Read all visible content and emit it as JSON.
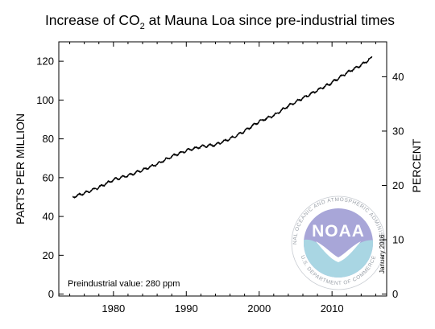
{
  "chart_data": {
    "type": "line",
    "title": "Increase of CO",
    "title_subscript": "2",
    "title_rest": " at Mauna Loa since pre-industrial times",
    "ylabel_left": "PARTS PER MILLION",
    "ylabel_right": "PERCENT",
    "xlabel": "",
    "xlim": [
      1972.5,
      2017.5
    ],
    "ylim": [
      -1,
      130
    ],
    "yticks_left": [
      0,
      20,
      40,
      60,
      80,
      100,
      120
    ],
    "yticks_right": [
      0,
      10,
      20,
      30,
      40
    ],
    "xticks": [
      1980,
      1990,
      2000,
      2010
    ],
    "right_axis_base_ppm": 280,
    "series": [
      {
        "x": [
          1974.4,
          1976,
          1978,
          1980,
          1982,
          1984,
          1986,
          1988,
          1990,
          1992,
          1994,
          1996,
          1998,
          2000,
          2002,
          2004,
          2006,
          2008,
          2010,
          2012,
          2014,
          2015.5
        ],
        "values": [
          50,
          52,
          55,
          59,
          61,
          64,
          67,
          71,
          74,
          76,
          77,
          80,
          84,
          89,
          92,
          97,
          101,
          105,
          109,
          114,
          118,
          122
        ]
      }
    ],
    "line_color": "#000000",
    "grid": false,
    "annotation": "Preindustrial value: 280 ppm",
    "date_note": "January 2016"
  },
  "logo": {
    "text": "NOAA",
    "ring_top": "NATIONAL OCEANIC AND ATMOSPHERIC ADMINISTRATION",
    "ring_bottom": "U.S. DEPARTMENT OF COMMERCE",
    "colors": {
      "upper": "#a8a6d8",
      "lower": "#a9d6e3",
      "ring": "#9aa0a8"
    }
  }
}
